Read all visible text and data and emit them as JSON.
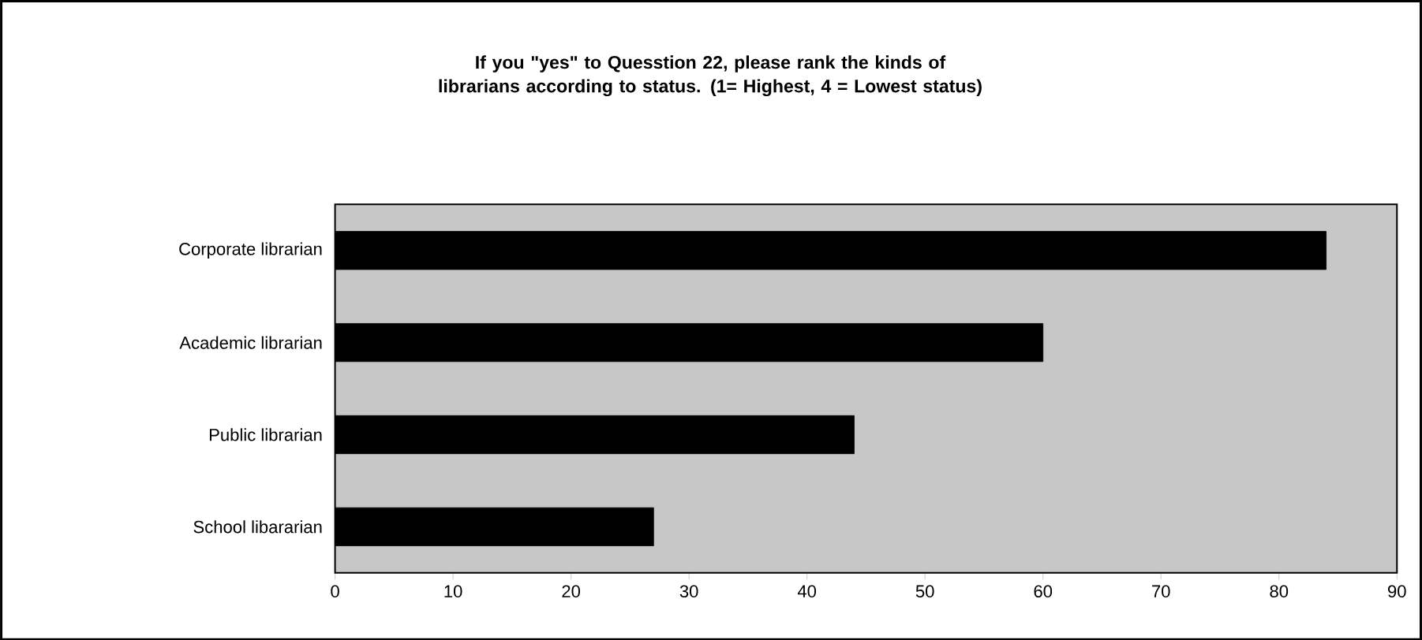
{
  "chart_data": {
    "type": "bar",
    "orientation": "horizontal",
    "title": "If you \"yes\" to Quesstion 22, please rank the kinds of librarians according to status. (1= Highest, 4 = Lowest status)",
    "categories": [
      "Corporate librarian",
      "Academic librarian",
      "Public librarian",
      "School libararian"
    ],
    "values": [
      84,
      60,
      44,
      27
    ],
    "color": "#000000",
    "xlim": [
      0,
      90
    ],
    "xticks": [
      0,
      10,
      20,
      30,
      40,
      50,
      60,
      70,
      80,
      90
    ],
    "grid": false
  }
}
